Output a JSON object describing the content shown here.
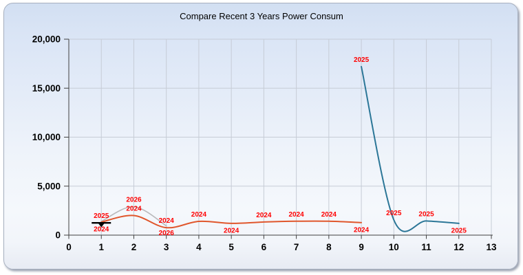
{
  "window": {
    "title": "Compare Recent 3 Years Power Consum"
  },
  "chart_data": {
    "type": "line",
    "title": "Compare Recent 3 Years Power Consum",
    "xlabel": "",
    "ylabel": "",
    "xlim": [
      0,
      13
    ],
    "ylim": [
      0,
      20000
    ],
    "grid": true,
    "legend_position": "none",
    "smoothing": "spline",
    "point_label_color": "#ff0000",
    "axis_color": "#3f3f3f",
    "grid_color": "#c6ccd6",
    "x_ticks": [
      0,
      1,
      2,
      3,
      4,
      5,
      6,
      7,
      8,
      9,
      10,
      11,
      12,
      13
    ],
    "x_tick_labels": [
      "0",
      "1",
      "2",
      "3",
      "4",
      "5",
      "6",
      "7",
      "8",
      "9",
      "10",
      "11",
      "12",
      "13"
    ],
    "y_ticks": [
      0,
      5000,
      10000,
      15000,
      20000
    ],
    "y_tick_labels": [
      "0",
      "5,000",
      "10,000",
      "15,000",
      "20,000"
    ],
    "series": [
      {
        "name": "2026",
        "color": "#b9b9bb",
        "width": 1.6,
        "x": [
          1,
          2,
          3
        ],
        "values": [
          1400,
          2900,
          950
        ],
        "label_sides": [
          "none",
          "above",
          "below"
        ]
      },
      {
        "name": "2024",
        "color": "#e0562c",
        "width": 2,
        "x": [
          1,
          2,
          3,
          4,
          5,
          6,
          7,
          8,
          9
        ],
        "values": [
          1330,
          2000,
          760,
          1400,
          1200,
          1340,
          1420,
          1420,
          1280
        ],
        "label_sides": [
          "below",
          "above",
          "above",
          "above",
          "below",
          "above",
          "above",
          "above",
          "below"
        ]
      },
      {
        "name": "2025",
        "color": "#2b7697",
        "width": 2,
        "x": [
          1,
          9,
          10,
          11,
          12
        ],
        "values": [
          1250,
          17200,
          1550,
          1450,
          1200
        ],
        "label_sides": [
          "above",
          "above",
          "above",
          "above",
          "below"
        ],
        "isolated_marker": {
          "x": 1,
          "type": "dash-down-triangle",
          "color": "#000000"
        }
      }
    ]
  }
}
